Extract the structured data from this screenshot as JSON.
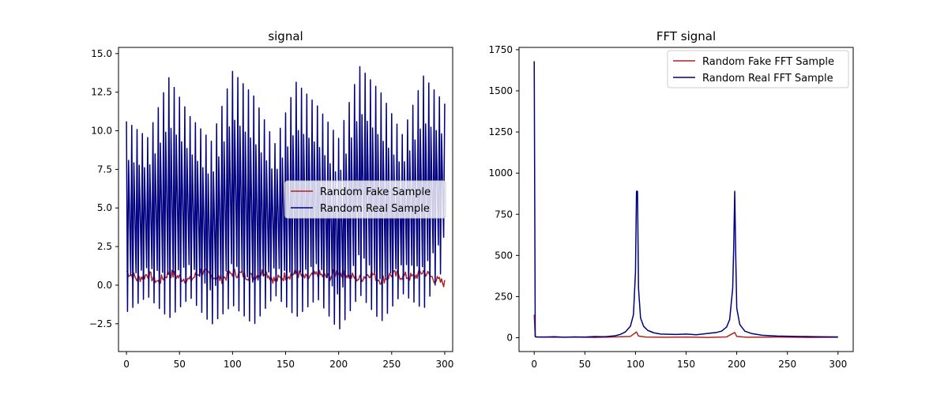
{
  "chart_data": [
    {
      "type": "line",
      "title": "signal",
      "xlabel": "",
      "ylabel": "",
      "xlim": [
        -7.5,
        307.5
      ],
      "ylim": [
        -4.3,
        15.4
      ],
      "xticks": [
        0,
        50,
        100,
        150,
        200,
        250,
        300
      ],
      "yticks": [
        -2.5,
        0.0,
        2.5,
        5.0,
        7.5,
        10.0,
        12.5,
        15.0
      ],
      "ytick_labels": [
        "−2.5",
        "0.0",
        "2.5",
        "5.0",
        "7.5",
        "10.0",
        "12.5",
        "15.0"
      ],
      "grid": false,
      "legend_position": "center-right",
      "series": [
        {
          "name": "Random Fake Sample",
          "color": "#b22222",
          "description_of_shape": "noisy values mostly between 0 and 1 across x 0-300",
          "x_start": 0,
          "x_end": 300,
          "values_sampled_every_10": [
            0.9,
            0.4,
            0.7,
            0.2,
            0.8,
            0.5,
            0.3,
            0.9,
            0.6,
            0.4,
            0.8,
            0.7,
            0.5,
            0.9,
            0.3,
            0.6,
            0.8,
            0.4,
            0.7,
            0.5,
            0.9,
            0.6,
            0.4,
            0.8,
            0.3,
            0.7,
            0.6,
            0.5,
            0.9,
            0.4,
            0.1
          ]
        },
        {
          "name": "Random Real Sample",
          "color": "#000080",
          "description_of_shape": "fast oscillation (~0.4 cycles per sample) with slowly varying amplitude; peaks ~8-14.5, troughs ~-3.3 to ~1",
          "x_start": 0,
          "x_end": 300,
          "upper_envelope_every_20": [
            10.9,
            9.8,
            13.8,
            11.2,
            9.6,
            14.2,
            12.6,
            9.4,
            13.5,
            11.9,
            9.8,
            14.5,
            12.8,
            10.0,
            13.9,
            12.0
          ],
          "lower_envelope_every_20": [
            -2.1,
            -1.0,
            -2.6,
            -1.1,
            -2.9,
            -1.7,
            -3.0,
            -0.9,
            -2.5,
            -1.2,
            -3.3,
            -1.0,
            -2.8,
            -0.8,
            -2.0,
            1.0
          ]
        }
      ]
    },
    {
      "type": "line",
      "title": "FFT signal",
      "xlabel": "",
      "ylabel": "",
      "xlim": [
        -15,
        315
      ],
      "ylim": [
        -84,
        1764
      ],
      "xticks": [
        0,
        50,
        100,
        150,
        200,
        250,
        300
      ],
      "yticks": [
        0,
        250,
        500,
        750,
        1000,
        1250,
        1500,
        1750
      ],
      "ytick_labels": [
        "0",
        "250",
        "500",
        "750",
        "1000",
        "1250",
        "1500",
        "1750"
      ],
      "grid": false,
      "legend_position": "top-right",
      "series": [
        {
          "name": "Random Fake FFT Sample",
          "color": "#b22222",
          "x": [
            0,
            1,
            20,
            40,
            60,
            80,
            95,
            101,
            103,
            110,
            130,
            150,
            170,
            190,
            198,
            200,
            210,
            240,
            270,
            300
          ],
          "values": [
            140,
            5,
            3,
            4,
            2,
            5,
            8,
            35,
            10,
            4,
            3,
            4,
            2,
            5,
            32,
            8,
            3,
            4,
            2,
            3
          ]
        },
        {
          "name": "Random Real FFT Sample",
          "color": "#000080",
          "x": [
            0,
            1,
            2,
            10,
            20,
            30,
            40,
            50,
            60,
            70,
            80,
            85,
            90,
            95,
            98,
            100,
            101,
            102,
            103,
            105,
            108,
            112,
            118,
            125,
            140,
            150,
            160,
            170,
            180,
            185,
            190,
            193,
            196,
            197,
            198,
            199,
            200,
            203,
            208,
            215,
            225,
            240,
            260,
            280,
            300
          ],
          "values": [
            1680,
            10,
            5,
            4,
            6,
            3,
            5,
            4,
            7,
            6,
            12,
            20,
            35,
            70,
            140,
            400,
            890,
            890,
            300,
            120,
            70,
            45,
            30,
            22,
            20,
            22,
            18,
            25,
            32,
            40,
            65,
            110,
            300,
            550,
            890,
            500,
            180,
            80,
            40,
            25,
            15,
            10,
            8,
            6,
            5
          ]
        }
      ]
    }
  ]
}
